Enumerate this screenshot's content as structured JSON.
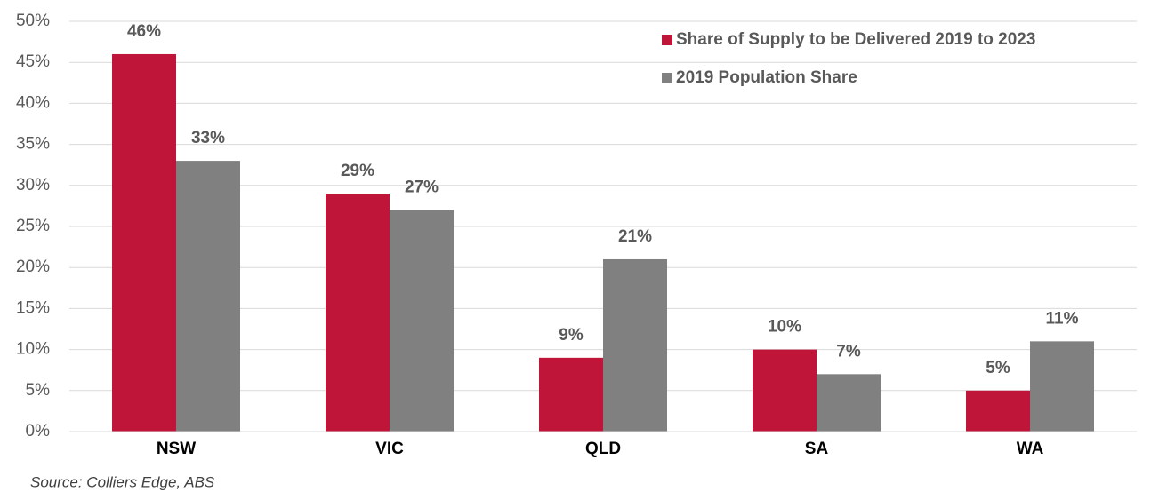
{
  "chart_data": {
    "type": "bar",
    "categories": [
      "NSW",
      "VIC",
      "QLD",
      "SA",
      "WA"
    ],
    "series": [
      {
        "name": "Share of Supply to be Delivered 2019 to 2023",
        "color": "#be1538",
        "values": [
          46,
          29,
          9,
          10,
          5
        ],
        "value_labels": [
          "46%",
          "29%",
          "9%",
          "10%",
          "5%"
        ]
      },
      {
        "name": "2019 Population Share",
        "color": "#808080",
        "values": [
          33,
          27,
          21,
          7,
          11
        ],
        "value_labels": [
          "33%",
          "27%",
          "21%",
          "7%",
          "11%"
        ]
      }
    ],
    "ylim": [
      0,
      50
    ],
    "yticks": [
      {
        "value": 0,
        "label": "0%"
      },
      {
        "value": 5,
        "label": "5%"
      },
      {
        "value": 10,
        "label": "10%"
      },
      {
        "value": 15,
        "label": "15%"
      },
      {
        "value": 20,
        "label": "20%"
      },
      {
        "value": 25,
        "label": "25%"
      },
      {
        "value": 30,
        "label": "30%"
      },
      {
        "value": 35,
        "label": "35%"
      },
      {
        "value": 40,
        "label": "40%"
      },
      {
        "value": 45,
        "label": "45%"
      },
      {
        "value": 50,
        "label": "50%"
      }
    ],
    "grid": true,
    "legend": "top-right",
    "source": "Source: Colliers Edge, ABS"
  }
}
